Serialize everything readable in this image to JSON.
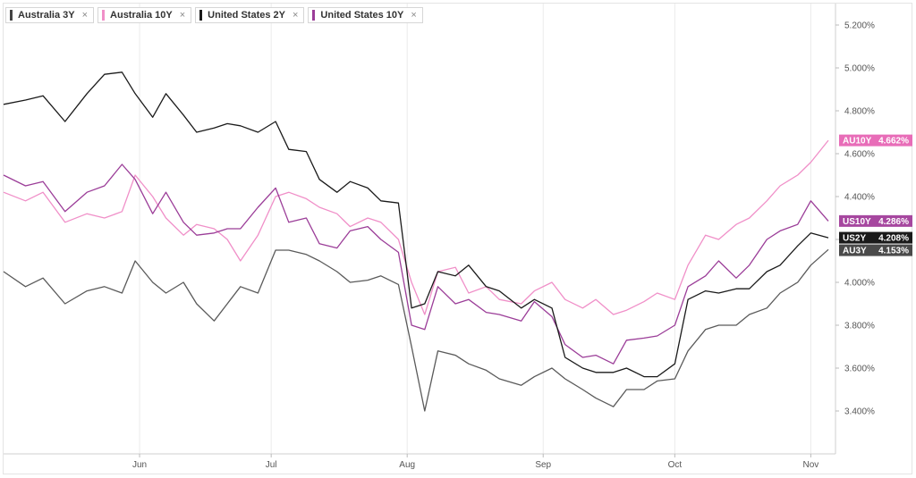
{
  "legend": [
    {
      "label": "Australia 3Y",
      "color": "#444444"
    },
    {
      "label": "Australia 10Y",
      "color": "#f08fc8"
    },
    {
      "label": "United States 2Y",
      "color": "#1a1a1a"
    },
    {
      "label": "United States 10Y",
      "color": "#9b3d98"
    }
  ],
  "close_glyph": "×",
  "chart_data": {
    "type": "line",
    "title": "",
    "xlabel": "",
    "ylabel": "",
    "x_start": "2024-05-01",
    "x_end": "2024-11-05",
    "x_ticks": [
      {
        "label": "Jun",
        "date": "2024-06-01"
      },
      {
        "label": "Jul",
        "date": "2024-07-01"
      },
      {
        "label": "Aug",
        "date": "2024-08-01"
      },
      {
        "label": "Sep",
        "date": "2024-09-01"
      },
      {
        "label": "Oct",
        "date": "2024-10-01"
      },
      {
        "label": "Nov",
        "date": "2024-11-01"
      }
    ],
    "y_ticks": [
      "3.400%",
      "3.600%",
      "3.800%",
      "4.000%",
      "4.200%",
      "4.400%",
      "4.600%",
      "4.800%",
      "5.000%",
      "5.200%"
    ],
    "ylim": [
      3.2,
      5.3
    ],
    "grid": "vertical",
    "y_axis_position": "right",
    "series": [
      {
        "name": "Australia 10Y",
        "color": "#f08fc8",
        "tag": {
          "label": "AU10Y",
          "value": "4.662%",
          "bg": "#e86db8"
        },
        "points": [
          [
            "2024-05-01",
            4.42
          ],
          [
            "2024-05-06",
            4.38
          ],
          [
            "2024-05-10",
            4.42
          ],
          [
            "2024-05-15",
            4.28
          ],
          [
            "2024-05-20",
            4.32
          ],
          [
            "2024-05-24",
            4.3
          ],
          [
            "2024-05-28",
            4.33
          ],
          [
            "2024-05-31",
            4.5
          ],
          [
            "2024-06-04",
            4.4
          ],
          [
            "2024-06-07",
            4.3
          ],
          [
            "2024-06-11",
            4.22
          ],
          [
            "2024-06-14",
            4.27
          ],
          [
            "2024-06-18",
            4.25
          ],
          [
            "2024-06-21",
            4.2
          ],
          [
            "2024-06-24",
            4.1
          ],
          [
            "2024-06-28",
            4.22
          ],
          [
            "2024-07-02",
            4.4
          ],
          [
            "2024-07-05",
            4.42
          ],
          [
            "2024-07-09",
            4.39
          ],
          [
            "2024-07-12",
            4.35
          ],
          [
            "2024-07-16",
            4.32
          ],
          [
            "2024-07-19",
            4.26
          ],
          [
            "2024-07-23",
            4.3
          ],
          [
            "2024-07-26",
            4.28
          ],
          [
            "2024-07-30",
            4.2
          ],
          [
            "2024-08-02",
            4.0
          ],
          [
            "2024-08-05",
            3.85
          ],
          [
            "2024-08-08",
            4.05
          ],
          [
            "2024-08-12",
            4.07
          ],
          [
            "2024-08-15",
            3.95
          ],
          [
            "2024-08-19",
            3.98
          ],
          [
            "2024-08-22",
            3.92
          ],
          [
            "2024-08-27",
            3.9
          ],
          [
            "2024-08-30",
            3.96
          ],
          [
            "2024-09-03",
            4.0
          ],
          [
            "2024-09-06",
            3.92
          ],
          [
            "2024-09-10",
            3.88
          ],
          [
            "2024-09-13",
            3.92
          ],
          [
            "2024-09-17",
            3.85
          ],
          [
            "2024-09-20",
            3.87
          ],
          [
            "2024-09-24",
            3.91
          ],
          [
            "2024-09-27",
            3.95
          ],
          [
            "2024-10-01",
            3.92
          ],
          [
            "2024-10-04",
            4.08
          ],
          [
            "2024-10-08",
            4.22
          ],
          [
            "2024-10-11",
            4.2
          ],
          [
            "2024-10-15",
            4.27
          ],
          [
            "2024-10-18",
            4.3
          ],
          [
            "2024-10-22",
            4.38
          ],
          [
            "2024-10-25",
            4.45
          ],
          [
            "2024-10-29",
            4.5
          ],
          [
            "2024-11-01",
            4.56
          ],
          [
            "2024-11-05",
            4.662
          ]
        ]
      },
      {
        "name": "United States 10Y",
        "color": "#9b3d98",
        "tag": {
          "label": "US10Y",
          "value": "4.286%",
          "bg": "#a6479f"
        },
        "points": [
          [
            "2024-05-01",
            4.5
          ],
          [
            "2024-05-06",
            4.45
          ],
          [
            "2024-05-10",
            4.47
          ],
          [
            "2024-05-15",
            4.33
          ],
          [
            "2024-05-20",
            4.42
          ],
          [
            "2024-05-24",
            4.45
          ],
          [
            "2024-05-28",
            4.55
          ],
          [
            "2024-05-31",
            4.48
          ],
          [
            "2024-06-04",
            4.32
          ],
          [
            "2024-06-07",
            4.42
          ],
          [
            "2024-06-11",
            4.28
          ],
          [
            "2024-06-14",
            4.22
          ],
          [
            "2024-06-18",
            4.23
          ],
          [
            "2024-06-21",
            4.25
          ],
          [
            "2024-06-24",
            4.25
          ],
          [
            "2024-06-28",
            4.35
          ],
          [
            "2024-07-02",
            4.44
          ],
          [
            "2024-07-05",
            4.28
          ],
          [
            "2024-07-09",
            4.3
          ],
          [
            "2024-07-12",
            4.18
          ],
          [
            "2024-07-16",
            4.16
          ],
          [
            "2024-07-19",
            4.24
          ],
          [
            "2024-07-23",
            4.26
          ],
          [
            "2024-07-26",
            4.2
          ],
          [
            "2024-07-30",
            4.14
          ],
          [
            "2024-08-02",
            3.8
          ],
          [
            "2024-08-05",
            3.78
          ],
          [
            "2024-08-08",
            3.98
          ],
          [
            "2024-08-12",
            3.9
          ],
          [
            "2024-08-15",
            3.92
          ],
          [
            "2024-08-19",
            3.86
          ],
          [
            "2024-08-22",
            3.85
          ],
          [
            "2024-08-27",
            3.82
          ],
          [
            "2024-08-30",
            3.91
          ],
          [
            "2024-09-03",
            3.84
          ],
          [
            "2024-09-06",
            3.71
          ],
          [
            "2024-09-10",
            3.65
          ],
          [
            "2024-09-13",
            3.66
          ],
          [
            "2024-09-17",
            3.62
          ],
          [
            "2024-09-20",
            3.73
          ],
          [
            "2024-09-24",
            3.74
          ],
          [
            "2024-09-27",
            3.75
          ],
          [
            "2024-10-01",
            3.8
          ],
          [
            "2024-10-04",
            3.98
          ],
          [
            "2024-10-08",
            4.03
          ],
          [
            "2024-10-11",
            4.1
          ],
          [
            "2024-10-15",
            4.02
          ],
          [
            "2024-10-18",
            4.08
          ],
          [
            "2024-10-22",
            4.2
          ],
          [
            "2024-10-25",
            4.24
          ],
          [
            "2024-10-29",
            4.27
          ],
          [
            "2024-11-01",
            4.38
          ],
          [
            "2024-11-05",
            4.286
          ]
        ]
      },
      {
        "name": "United States 2Y",
        "color": "#1a1a1a",
        "tag": {
          "label": "US2Y",
          "value": "4.208%",
          "bg": "#1a1a1a"
        },
        "points": [
          [
            "2024-05-01",
            4.83
          ],
          [
            "2024-05-06",
            4.85
          ],
          [
            "2024-05-10",
            4.87
          ],
          [
            "2024-05-15",
            4.75
          ],
          [
            "2024-05-20",
            4.88
          ],
          [
            "2024-05-24",
            4.97
          ],
          [
            "2024-05-28",
            4.98
          ],
          [
            "2024-05-31",
            4.88
          ],
          [
            "2024-06-04",
            4.77
          ],
          [
            "2024-06-07",
            4.88
          ],
          [
            "2024-06-11",
            4.78
          ],
          [
            "2024-06-14",
            4.7
          ],
          [
            "2024-06-18",
            4.72
          ],
          [
            "2024-06-21",
            4.74
          ],
          [
            "2024-06-24",
            4.73
          ],
          [
            "2024-06-28",
            4.7
          ],
          [
            "2024-07-02",
            4.75
          ],
          [
            "2024-07-05",
            4.62
          ],
          [
            "2024-07-09",
            4.61
          ],
          [
            "2024-07-12",
            4.48
          ],
          [
            "2024-07-16",
            4.42
          ],
          [
            "2024-07-19",
            4.47
          ],
          [
            "2024-07-23",
            4.44
          ],
          [
            "2024-07-26",
            4.38
          ],
          [
            "2024-07-30",
            4.37
          ],
          [
            "2024-08-02",
            3.88
          ],
          [
            "2024-08-05",
            3.9
          ],
          [
            "2024-08-08",
            4.05
          ],
          [
            "2024-08-12",
            4.03
          ],
          [
            "2024-08-15",
            4.08
          ],
          [
            "2024-08-19",
            3.98
          ],
          [
            "2024-08-22",
            3.96
          ],
          [
            "2024-08-27",
            3.88
          ],
          [
            "2024-08-30",
            3.92
          ],
          [
            "2024-09-03",
            3.88
          ],
          [
            "2024-09-06",
            3.65
          ],
          [
            "2024-09-10",
            3.6
          ],
          [
            "2024-09-13",
            3.58
          ],
          [
            "2024-09-17",
            3.58
          ],
          [
            "2024-09-20",
            3.6
          ],
          [
            "2024-09-24",
            3.56
          ],
          [
            "2024-09-27",
            3.56
          ],
          [
            "2024-10-01",
            3.62
          ],
          [
            "2024-10-04",
            3.92
          ],
          [
            "2024-10-08",
            3.96
          ],
          [
            "2024-10-11",
            3.95
          ],
          [
            "2024-10-15",
            3.97
          ],
          [
            "2024-10-18",
            3.97
          ],
          [
            "2024-10-22",
            4.05
          ],
          [
            "2024-10-25",
            4.08
          ],
          [
            "2024-10-29",
            4.17
          ],
          [
            "2024-11-01",
            4.23
          ],
          [
            "2024-11-05",
            4.208
          ]
        ]
      },
      {
        "name": "Australia 3Y",
        "color": "#5a5a5a",
        "tag": {
          "label": "AU3Y",
          "value": "4.153%",
          "bg": "#4a4a4a"
        },
        "points": [
          [
            "2024-05-01",
            4.05
          ],
          [
            "2024-05-06",
            3.98
          ],
          [
            "2024-05-10",
            4.02
          ],
          [
            "2024-05-15",
            3.9
          ],
          [
            "2024-05-20",
            3.96
          ],
          [
            "2024-05-24",
            3.98
          ],
          [
            "2024-05-28",
            3.95
          ],
          [
            "2024-05-31",
            4.1
          ],
          [
            "2024-06-04",
            4.0
          ],
          [
            "2024-06-07",
            3.95
          ],
          [
            "2024-06-11",
            4.0
          ],
          [
            "2024-06-14",
            3.9
          ],
          [
            "2024-06-18",
            3.82
          ],
          [
            "2024-06-21",
            3.9
          ],
          [
            "2024-06-24",
            3.98
          ],
          [
            "2024-06-28",
            3.95
          ],
          [
            "2024-07-02",
            4.15
          ],
          [
            "2024-07-05",
            4.15
          ],
          [
            "2024-07-09",
            4.13
          ],
          [
            "2024-07-12",
            4.1
          ],
          [
            "2024-07-16",
            4.05
          ],
          [
            "2024-07-19",
            4.0
          ],
          [
            "2024-07-23",
            4.01
          ],
          [
            "2024-07-26",
            4.03
          ],
          [
            "2024-07-30",
            3.99
          ],
          [
            "2024-08-02",
            3.7
          ],
          [
            "2024-08-05",
            3.4
          ],
          [
            "2024-08-08",
            3.68
          ],
          [
            "2024-08-12",
            3.66
          ],
          [
            "2024-08-15",
            3.62
          ],
          [
            "2024-08-19",
            3.59
          ],
          [
            "2024-08-22",
            3.55
          ],
          [
            "2024-08-27",
            3.52
          ],
          [
            "2024-08-30",
            3.56
          ],
          [
            "2024-09-03",
            3.6
          ],
          [
            "2024-09-06",
            3.55
          ],
          [
            "2024-09-10",
            3.5
          ],
          [
            "2024-09-13",
            3.46
          ],
          [
            "2024-09-17",
            3.42
          ],
          [
            "2024-09-20",
            3.5
          ],
          [
            "2024-09-24",
            3.5
          ],
          [
            "2024-09-27",
            3.54
          ],
          [
            "2024-10-01",
            3.55
          ],
          [
            "2024-10-04",
            3.68
          ],
          [
            "2024-10-08",
            3.78
          ],
          [
            "2024-10-11",
            3.8
          ],
          [
            "2024-10-15",
            3.8
          ],
          [
            "2024-10-18",
            3.85
          ],
          [
            "2024-10-22",
            3.88
          ],
          [
            "2024-10-25",
            3.95
          ],
          [
            "2024-10-29",
            4.0
          ],
          [
            "2024-11-01",
            4.08
          ],
          [
            "2024-11-05",
            4.153
          ]
        ]
      }
    ]
  }
}
